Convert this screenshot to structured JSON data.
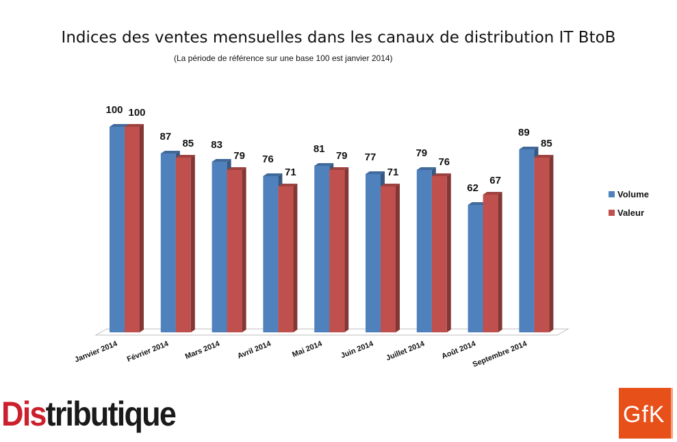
{
  "chart_data": {
    "type": "bar",
    "title": "Indices des ventes mensuelles dans les canaux de distribution IT BtoB",
    "subtitle": "(La période de référence sur une base 100 est janvier 2014)",
    "categories": [
      "Janvier 2014",
      "Février 2014",
      "Mars 2014",
      "Avril 2014",
      "Mai 2014",
      "Juin 2014",
      "Juillet 2014",
      "Août 2014",
      "Septembre 2014"
    ],
    "series": [
      {
        "name": "Volume",
        "values": [
          100,
          87,
          83,
          76,
          81,
          77,
          79,
          62,
          89
        ],
        "color": "#4f81bd"
      },
      {
        "name": "Valeur",
        "values": [
          100,
          85,
          79,
          71,
          79,
          71,
          76,
          67,
          85
        ],
        "color": "#c0504d"
      }
    ],
    "ylim": [
      0,
      100
    ],
    "grid": false,
    "legend": "right",
    "data_labels": true
  },
  "logos": {
    "distributique": {
      "part_red": "Dis",
      "part_dark": "tributique",
      "color_red": "#cc1f2d",
      "color_dark": "#1a1a1a"
    },
    "gfk": {
      "text": "GfK",
      "color": "#e8501a"
    }
  }
}
